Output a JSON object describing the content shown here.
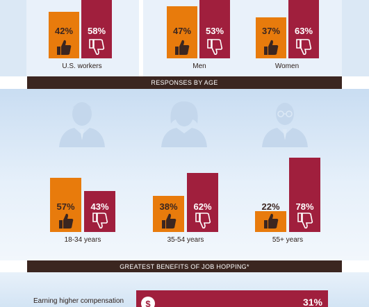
{
  "chart_data": [
    {
      "type": "bar",
      "categories": [
        "U.S. workers",
        "Men",
        "Women"
      ],
      "series": [
        {
          "values": [
            42,
            47,
            37
          ]
        },
        {
          "values": [
            58,
            53,
            63
          ]
        }
      ],
      "labels": [
        [
          "42%",
          "58%"
        ],
        [
          "47%",
          "53%"
        ],
        [
          "37%",
          "63%"
        ]
      ],
      "ylim": [
        0,
        100
      ]
    },
    {
      "type": "bar",
      "title": "RESPONSES BY AGE",
      "categories": [
        "18-34 years",
        "35-54 years",
        "55+ years"
      ],
      "series": [
        {
          "values": [
            57,
            38,
            22
          ]
        },
        {
          "values": [
            43,
            62,
            78
          ]
        }
      ],
      "labels": [
        [
          "57%",
          "43%"
        ],
        [
          "38%",
          "62%"
        ],
        [
          "22%",
          "78%"
        ]
      ],
      "ylim": [
        0,
        100
      ]
    },
    {
      "type": "bar",
      "title": "GREATEST BENEFITS OF JOB HOPPING*",
      "categories": [
        "Earning higher compensation"
      ],
      "values": [
        31
      ],
      "labels": [
        "31%"
      ]
    }
  ],
  "colors": {
    "yes": "#e87b0c",
    "no": "#a01f3d",
    "header": "#3b2620"
  },
  "icons": {
    "yes": "thumbs-up-icon",
    "no": "thumbs-down-icon",
    "benefit": "money-bag-icon"
  }
}
